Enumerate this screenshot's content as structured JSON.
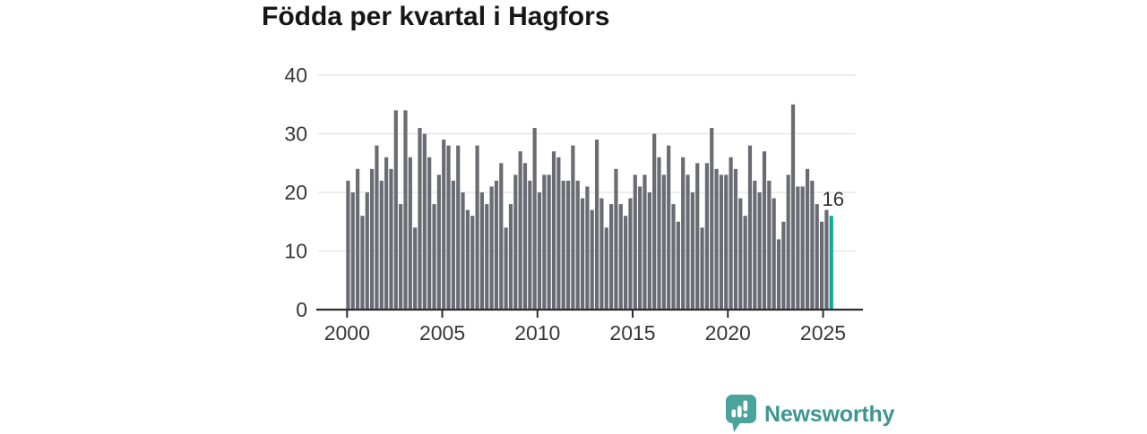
{
  "chart_data": {
    "type": "bar",
    "title": "Födda per kvartal i Hagfors",
    "xlabel": "",
    "ylabel": "",
    "x_period": "quarterly",
    "x_range": [
      "2000-Q1",
      "2025-Q2"
    ],
    "x_tick_labels": [
      "2000",
      "2005",
      "2010",
      "2015",
      "2020",
      "2025"
    ],
    "y_ticks": [
      0,
      10,
      20,
      30,
      40
    ],
    "ylim": [
      0,
      42
    ],
    "grid": true,
    "values": [
      22,
      20,
      24,
      16,
      20,
      24,
      28,
      22,
      26,
      24,
      34,
      18,
      34,
      26,
      14,
      31,
      30,
      26,
      18,
      23,
      29,
      28,
      22,
      28,
      20,
      17,
      16,
      28,
      20,
      18,
      21,
      22,
      25,
      14,
      18,
      23,
      27,
      25,
      22,
      31,
      20,
      23,
      23,
      27,
      26,
      22,
      22,
      28,
      22,
      19,
      21,
      17,
      29,
      19,
      14,
      18,
      24,
      18,
      16,
      19,
      23,
      21,
      23,
      20,
      30,
      26,
      23,
      28,
      18,
      15,
      26,
      23,
      20,
      25,
      14,
      25,
      31,
      24,
      23,
      23,
      26,
      24,
      19,
      16,
      28,
      22,
      20,
      27,
      22,
      19,
      12,
      15,
      23,
      35,
      21,
      21,
      24,
      22,
      18,
      15,
      17,
      16
    ],
    "highlight_last": true,
    "last_value_label": "16",
    "bar_color": "#6b6b74",
    "highlight_color": "#10ab9c",
    "grid_color": "#e2e2e2",
    "axis_color": "#2d2d2d",
    "label_color": "#383838"
  },
  "footer": {
    "brand": "Newsworthy",
    "brand_color": "#3e968f",
    "logo_color": "#4ba49c"
  }
}
